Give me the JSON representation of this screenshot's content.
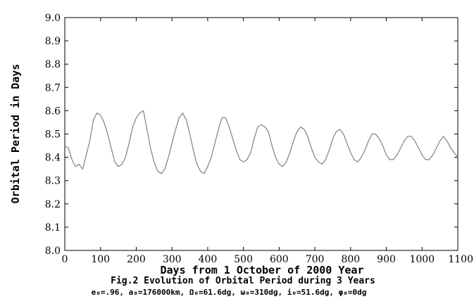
{
  "chart_data": {
    "type": "line",
    "xlabel": "Days from 1 October of 2000 Year",
    "ylabel": "Orbital Period in Days",
    "caption": "Fig.2 Evolution of Orbital Period during 3 Years",
    "parameters": "e₀=.96, a₀=176000km, Ω₀=61.6dg, ω₀=310dg, i₀=51.6dg, φ₀=0dg",
    "xlim": [
      0,
      1100
    ],
    "ylim": [
      8.0,
      9.0
    ],
    "xticks": [
      0,
      100,
      200,
      300,
      400,
      500,
      600,
      700,
      800,
      900,
      1000,
      1100
    ],
    "yticks": [
      8.0,
      8.1,
      8.2,
      8.3,
      8.4,
      8.5,
      8.6,
      8.7,
      8.8,
      8.9,
      9.0
    ],
    "grid": false,
    "line_color": "#808080",
    "series": [
      {
        "x": [
          0,
          10,
          20,
          30,
          40,
          50,
          60,
          70,
          80,
          90,
          100,
          110,
          120,
          130,
          140,
          150,
          160,
          170,
          180,
          190,
          200,
          210,
          220,
          230,
          240,
          250,
          260,
          270,
          280,
          290,
          300,
          310,
          320,
          330,
          340,
          350,
          360,
          370,
          380,
          390,
          400,
          410,
          420,
          430,
          440,
          450,
          460,
          470,
          480,
          490,
          500,
          510,
          520,
          530,
          540,
          550,
          560,
          570,
          580,
          590,
          600,
          610,
          620,
          630,
          640,
          650,
          660,
          670,
          680,
          690,
          700,
          710,
          720,
          730,
          740,
          750,
          760,
          770,
          780,
          790,
          800,
          810,
          820,
          830,
          840,
          850,
          860,
          870,
          880,
          890,
          900,
          910,
          920,
          930,
          940,
          950,
          960,
          970,
          980,
          990,
          1000,
          1010,
          1020,
          1030,
          1040,
          1050,
          1060,
          1070,
          1080,
          1090,
          1100
        ],
        "y": [
          8.45,
          8.44,
          8.39,
          8.36,
          8.37,
          8.35,
          8.41,
          8.47,
          8.56,
          8.59,
          8.58,
          8.55,
          8.5,
          8.44,
          8.38,
          8.36,
          8.37,
          8.4,
          8.46,
          8.53,
          8.57,
          8.59,
          8.6,
          8.52,
          8.44,
          8.38,
          8.34,
          8.33,
          8.35,
          8.4,
          8.46,
          8.52,
          8.57,
          8.59,
          8.56,
          8.5,
          8.43,
          8.37,
          8.34,
          8.33,
          8.36,
          8.4,
          8.46,
          8.52,
          8.57,
          8.57,
          8.53,
          8.48,
          8.43,
          8.39,
          8.38,
          8.39,
          8.42,
          8.48,
          8.53,
          8.54,
          8.53,
          8.51,
          8.45,
          8.4,
          8.37,
          8.36,
          8.38,
          8.42,
          8.47,
          8.51,
          8.53,
          8.52,
          8.49,
          8.44,
          8.4,
          8.38,
          8.37,
          8.39,
          8.43,
          8.48,
          8.51,
          8.52,
          8.5,
          8.46,
          8.42,
          8.39,
          8.38,
          8.4,
          8.43,
          8.47,
          8.5,
          8.5,
          8.48,
          8.45,
          8.41,
          8.39,
          8.39,
          8.41,
          8.44,
          8.47,
          8.49,
          8.49,
          8.47,
          8.44,
          8.41,
          8.39,
          8.39,
          8.41,
          8.44,
          8.47,
          8.49,
          8.47,
          8.44,
          8.42,
          8.4
        ]
      }
    ]
  }
}
